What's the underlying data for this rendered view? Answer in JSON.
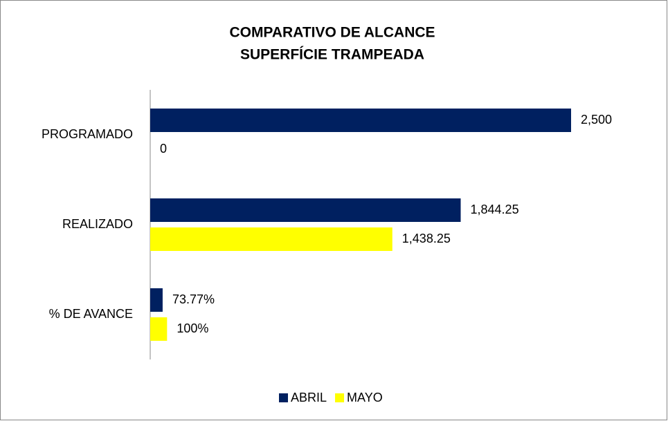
{
  "chart_data": {
    "type": "hbar",
    "title": [
      "COMPARATIVO DE ALCANCE",
      "SUPERFÍCIE TRAMPEADA"
    ],
    "categories": [
      "PROGRAMADO",
      "REALIZADO",
      "% DE AVANCE"
    ],
    "series": [
      {
        "name": "ABRIL",
        "color": "#002060",
        "values": [
          2500,
          1844.25,
          73.77
        ],
        "value_labels": [
          "2,500",
          "1,844.25",
          "73.77%"
        ]
      },
      {
        "name": "MAYO",
        "color": "#ffff00",
        "values": [
          0,
          1438.25,
          100
        ],
        "value_labels": [
          "0",
          "1,438.25",
          "100%"
        ]
      }
    ],
    "xlim": [
      0,
      2500
    ],
    "legend": "bottom"
  }
}
